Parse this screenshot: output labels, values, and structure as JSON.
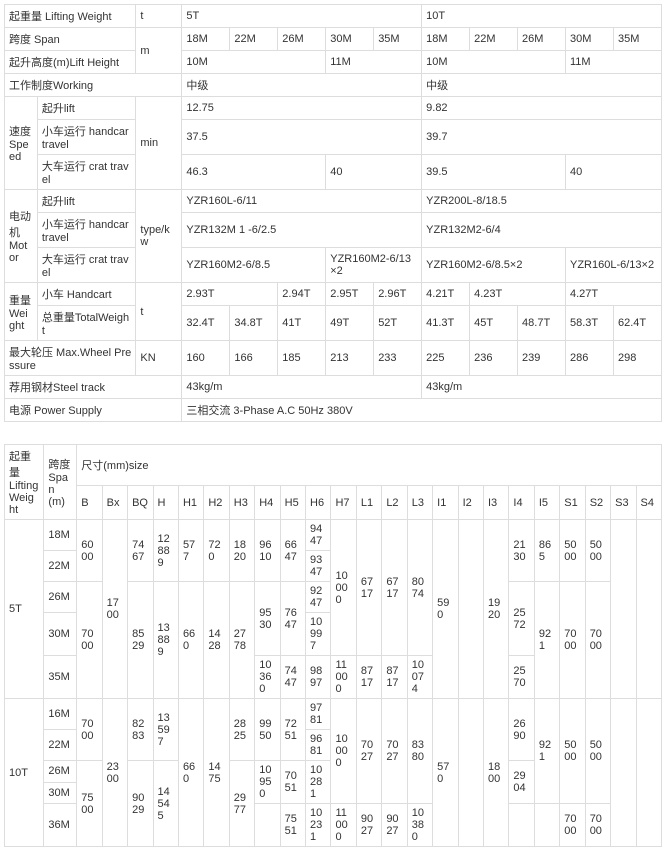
{
  "t1": {
    "lifting_weight_lbl": "起重量 Lifting Weight",
    "lw_unit": "t",
    "lw_v1": "5T",
    "lw_v2": "10T",
    "span_lbl": "跨度 Span",
    "span_unit": "m",
    "span_18": "18M",
    "span_22": "22M",
    "span_26": "26M",
    "span_30": "30M",
    "span_35": "35M",
    "lift_h_lbl": "起升高度(m)Lift Height",
    "lift_h_10": "10M",
    "lift_h_11": "11M",
    "working_lbl": "工作制度Working",
    "working_v": "中级",
    "speed_lbl": "速度",
    "speed_lbl2": "Speed",
    "speed_unit": "min",
    "sp_lift_lbl": "起升lift",
    "sp_lift_5": "12.75",
    "sp_lift_10": "9.82",
    "sp_hand_lbl": "小车运行 handcar travel",
    "sp_hand_5": "37.5",
    "sp_hand_10": "39.7",
    "sp_crat_lbl": "大车运行 crat travel",
    "sp_crat_5a": "46.3",
    "sp_crat_5b": "40",
    "sp_crat_10a": "39.5",
    "sp_crat_10b": "40",
    "motor_lbl": "电动机",
    "motor_lbl2": "Motor",
    "motor_unit": "type/kw",
    "mt_lift_lbl": "起升lift",
    "mt_lift_5": "YZR160L-6/11",
    "mt_lift_10": "YZR200L-8/18.5",
    "mt_hand_lbl": "小车运行 handcar travel",
    "mt_hand_5": "YZR132M 1 -6/2.5",
    "mt_hand_10": "YZR132M2-6/4",
    "mt_crat_lbl": "大车运行 crat travel",
    "mt_crat_5a": "YZR160M2-6/8.5",
    "mt_crat_5b": "YZR160M2-6/13×2",
    "mt_crat_10a": "YZR160M2-6/8.5×2",
    "mt_crat_10b": "YZR160L-6/13×2",
    "wt_lbl": "重量",
    "wt_lbl2": "Weight",
    "wt_unit": "t",
    "wt_hand_lbl": "小车 Handcart",
    "hc_5_1": "2.93T",
    "hc_5_2": "2.94T",
    "hc_5_3": "2.95T",
    "hc_5_4": "2.96T",
    "hc_10_1": "4.21T",
    "hc_10_2": "4.23T",
    "hc_10_3": "4.27T",
    "wt_tot_lbl": "总重量TotalWeight",
    "tw_5_1": "32.4T",
    "tw_5_2": "34.8T",
    "tw_5_3": "41T",
    "tw_5_4": "49T",
    "tw_5_5": "52T",
    "tw_10_1": "41.3T",
    "tw_10_2": "45T",
    "tw_10_3": "48.7T",
    "tw_10_4": "58.3T",
    "tw_10_5": "62.4T",
    "mwp_lbl": "最大轮压 Max.Wheel Pressure",
    "mwp_unit": "KN",
    "mwp_1": "160",
    "mwp_2": "166",
    "mwp_3": "185",
    "mwp_4": "213",
    "mwp_5": "233",
    "mwp_6": "225",
    "mwp_7": "236",
    "mwp_8": "239",
    "mwp_9": "286",
    "mwp_10": "298",
    "track_lbl": "荐用钢材Steel track",
    "track_v": "43kg/m",
    "power_lbl": "电源 Power Supply",
    "power_v": "三相交流 3-Phase A.C 50Hz 380V"
  },
  "t2": {
    "lw_lbl": "起重量",
    "lw_lbl2": "Lifting",
    "lw_lbl3": "Weight",
    "sp_lbl": "跨度",
    "sp_lbl2": "Span",
    "sp_lbl3": "(m)",
    "size_lbl": "尺寸(mm)size",
    "cols": [
      "B",
      "Bx",
      "BQ",
      "H",
      "H1",
      "H2",
      "H3",
      "H4",
      "H5",
      "H6",
      "H7",
      "L1",
      "L2",
      "L3",
      "I1",
      "I2",
      "I3",
      "I4",
      "I5",
      "S1",
      "S2",
      "S3",
      "S4"
    ],
    "g5": "5T",
    "g10": "10T",
    "sp18": "18M",
    "sp22": "22M",
    "sp26": "26M",
    "sp30": "30M",
    "sp35": "35M",
    "sp16": "16M",
    "sp36": "36M",
    "r5": {
      "B_a": "6000",
      "B_b": "7000",
      "Bx": "1700",
      "BQ_a": "7467",
      "BQ_b": "8529",
      "H_a": "12889",
      "H_b": "13889",
      "H1_a": "577",
      "H1_b": "660",
      "H2_a": "720",
      "H2_b": "1428",
      "H3_a": "1820",
      "H3_b": "2778",
      "H4_a": "9610",
      "H4_b": "9530",
      "H4_c": "10360",
      "H5_a": "6647",
      "H5_b": "7647",
      "H5_c": "7447",
      "H6_1": "9447",
      "H6_2": "9347",
      "H6_3": "9247",
      "H6_4": "10997",
      "H6_5": "9897",
      "H7_a": "10000",
      "H7_b": "11000",
      "L1_a": "6717",
      "L1_b": "8717",
      "L2_a": "6717",
      "L2_b": "8717",
      "L3_a": "8074",
      "L3_b": "10074",
      "I1": "590",
      "I3": "1920",
      "I4_a": "2130",
      "I4_b": "2572",
      "I4_c": "2570",
      "I5_a": "865",
      "I5_b": "921",
      "S1_a": "5000",
      "S1_b": "7000",
      "S2_a": "5000",
      "S2_b": "7000"
    },
    "r10": {
      "B_a": "7000",
      "B_b": "7500",
      "Bx": "2300",
      "BQ_a": "8283",
      "BQ_b": "9029",
      "H_a": "13597",
      "H_b": "14545",
      "H1": "660",
      "H2": "1475",
      "H3_a": "2825",
      "H3_b": "2977",
      "H4_a": "9950",
      "H4_b": "10950",
      "H5_a": "7251",
      "H5_b": "7051",
      "H5_c": "7551",
      "H6_1": "9781",
      "H6_2": "9681",
      "H6_3": "10281",
      "H6_5": "10231",
      "H7_a": "10000",
      "H7_b": "11000",
      "L1_a": "7027",
      "L1_b": "9027",
      "L2_a": "7027",
      "L2_b": "9027",
      "L3_a": "8380",
      "L3_b": "10380",
      "I1": "570",
      "I3": "1800",
      "I4_a": "2690",
      "I4_b": "2904",
      "I5": "921",
      "S1_a": "5000",
      "S1_b": "7000",
      "S2_a": "5000",
      "S2_b": "7000"
    }
  },
  "style": {
    "border_color": "#dddddd",
    "text_color": "#333333",
    "font_size": 11,
    "bg": "#ffffff"
  }
}
